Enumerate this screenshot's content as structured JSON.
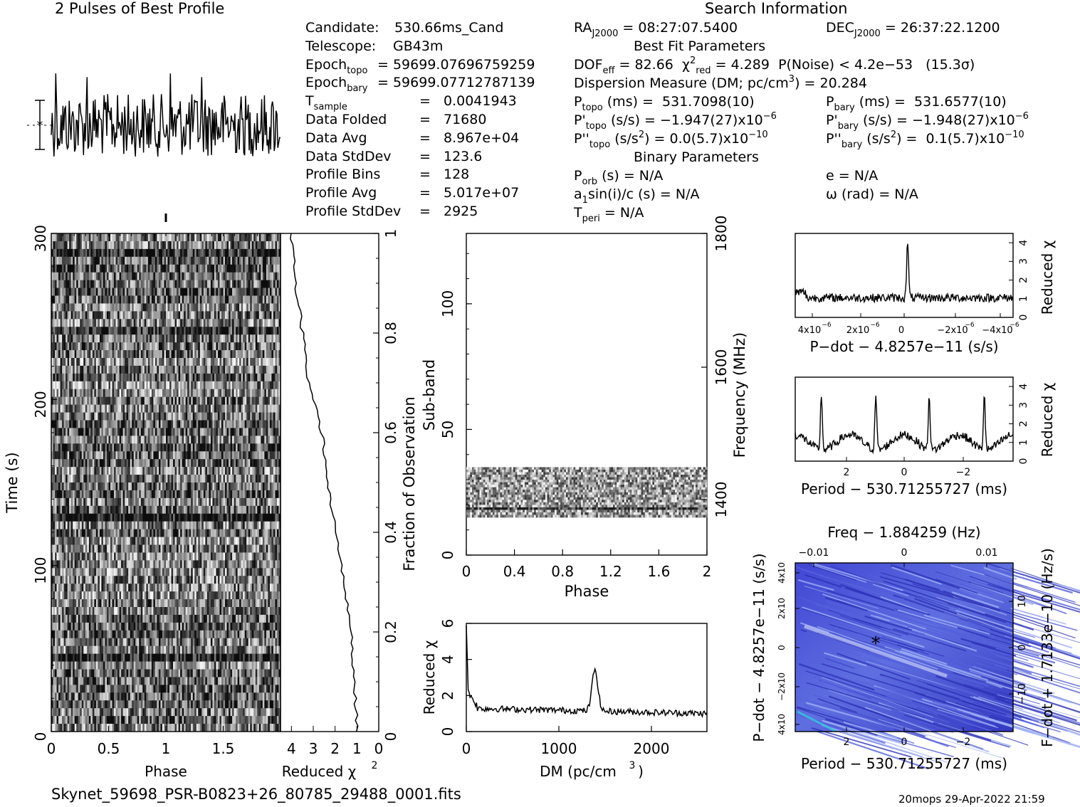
{
  "header": {
    "left_title": "2 Pulses of Best Profile",
    "right_title": "Search Information",
    "filename": "Skynet_59698_PSR-B0823+26_80785_29488_0001.fits",
    "footer": "20mops 29-Apr-2022 21:59"
  },
  "info_left": [
    {
      "label": "Candidate:",
      "value": "530.66ms_Cand"
    },
    {
      "label": "Telescope:",
      "value": "GB43m"
    },
    {
      "label": "Epoch",
      "sub": "topo",
      "value": "= 59699.07696759259"
    },
    {
      "label": "Epoch",
      "sub": "bary",
      "value": "= 59699.07712787139"
    },
    {
      "label": "T",
      "sub": "sample",
      "value": "=",
      "value2": "0.0041943"
    },
    {
      "label": "Data Folded",
      "value": "=",
      "value2": "71680"
    },
    {
      "label": "Data Avg",
      "value": "=",
      "value2": "8.967e+04"
    },
    {
      "label": "Data StdDev",
      "value": "=",
      "value2": "123.6"
    },
    {
      "label": "Profile Bins",
      "value": "=",
      "value2": "128"
    },
    {
      "label": "Profile Avg",
      "value": "=",
      "value2": "5.017e+07"
    },
    {
      "label": "Profile StdDev",
      "value": "=",
      "value2": "2925"
    }
  ],
  "info_mid": {
    "ra": "RA",
    "ra_sub": "J2000",
    "ra_val": "= 08:27:07.5400",
    "dec": "DEC",
    "dec_sub": "J2000",
    "dec_val": "= 26:37:22.1200",
    "best_fit": "Best Fit Parameters",
    "dof": "DOF",
    "dof_sub": "eff",
    "dof_val": "= 82.66",
    "chi": "χ",
    "chi_sup": "2",
    "chi_sub": "red",
    "chi_val": "= 4.289",
    "pnoise": "P(Noise) < 4.2e−53   (15.3σ)",
    "dm_line": "Dispersion Measure (DM; pc/cm",
    "dm_sup": "3",
    "dm_val": ") = 20.284",
    "ptopo": "P",
    "ptopo_sub": "topo",
    "ptopo_val": " (ms) =  531.7098(10)",
    "pbary": "P",
    "pbary_sub": "bary",
    "pbary_val": " (ms) =  531.6577(10)",
    "pdtopo": "P'",
    "pdtopo_sub": "topo",
    "pdtopo_val": " (s/s) = −1.947(27)x10",
    "pdtopo_exp": "−6",
    "pdbary": "P'",
    "pdbary_sub": "bary",
    "pdbary_val": " (s/s) = −1.948(27)x10",
    "pdbary_exp": "−6",
    "pddtopo": "P''",
    "pddtopo_sub": "topo",
    "pddtopo_val": " (s/s",
    "pddtopo_sup": "2",
    "pddtopo_val2": ") = 0.0(5.7)x10",
    "pddtopo_exp": "−10",
    "pddbary": "P''",
    "pddbary_sub": "bary",
    "pddbary_val": " (s/s",
    "pddbary_sup": "2",
    "pddbary_val2": ") =  0.1(5.7)x10",
    "pddbary_exp": "−10",
    "binary": "Binary Parameters",
    "porb": "P",
    "porb_sub": "orb",
    "porb_val": " (s) = N/A",
    "ecc": "e = N/A",
    "a1": "a",
    "a1_sub": "1",
    "a1_val": "sin(i)/c (s) = N/A",
    "omega": "ω (rad) = N/A",
    "tperi": "T",
    "tperi_sub": "peri",
    "tperi_val": " = N/A"
  },
  "axes": {
    "time_label": "Time (s)",
    "phase_label": "Phase",
    "redchi_label": "Reduced χ",
    "redchi_sup": "2",
    "fraction_label": "Fraction of Observation",
    "subband_label": "Sub-band",
    "frequency_label": "Frequency (MHz)",
    "dm_label": "DM (pc/cm",
    "dm_sup": "3",
    "dm_close": ")",
    "pdot_label": "P−dot − 4.8257e−11 (s/s)",
    "period_label1": "Period − 530.71255727 (ms)",
    "period_label2": "Period − 530.71255727 (ms)",
    "freq_label": "Freq − 1.884259 (Hz)",
    "pdot_vert": "P−dot − 4.8257e−11 (s/s)",
    "fdot_vert": "F−dot + 1.7133e−10 (Hz/s)",
    "time_ticks": [
      "0",
      "100",
      "200",
      "300"
    ],
    "phase_ticks": [
      "0",
      "0.5",
      "1",
      "1.5"
    ],
    "redchi_ticks": [
      "4",
      "3",
      "2",
      "1",
      "0"
    ],
    "frac_ticks": [
      "0.2",
      "0.4",
      "0.6",
      "0.8",
      "1"
    ],
    "sub_ticks": [
      "0",
      "50",
      "100"
    ],
    "freq_ticks": [
      "1400",
      "1600",
      "1800"
    ],
    "phase2_ticks": [
      "0",
      "0.4",
      "0.8",
      "1.2",
      "1.6",
      "2"
    ],
    "dmchi_ticks": [
      "0",
      "2",
      "4",
      "6"
    ],
    "dm_ticks": [
      "0",
      "1000",
      "2000"
    ],
    "pd_x_ticks": [
      "4x10",
      "2x10",
      "0",
      "−2x10",
      "−4x10"
    ],
    "pd_x_exp": "−6",
    "rc_ticks": [
      "0",
      "1",
      "2",
      "3",
      "4"
    ],
    "per_ticks": [
      "2",
      "0",
      "−2"
    ],
    "freq_top_ticks": [
      "−0.01",
      "0",
      "0.01"
    ],
    "pdot_left_ticks": [
      "4x10",
      "−2x10",
      "0",
      "2x10",
      "4x10"
    ],
    "fdot_right_ticks": [
      "−10",
      "0",
      "10"
    ],
    "fdot_exp": "−4"
  },
  "chart_data": [
    {
      "type": "line",
      "name": "pulse profile",
      "title": "2 Pulses of Best Profile",
      "x": [
        0,
        2
      ],
      "note_values": "noise-like profile over 2 pulses"
    },
    {
      "type": "heatmap",
      "name": "time-phase",
      "xlabel": "Phase",
      "ylabel": "Time (s)",
      "xlim": [
        0,
        2
      ],
      "ylim": [
        0,
        300
      ]
    },
    {
      "type": "line",
      "name": "reduced chi2 vs time",
      "xlabel": "Reduced χ2",
      "x": [
        1.0,
        1.1,
        1.3,
        1.6,
        2.0,
        2.3,
        2.6,
        2.9,
        3.2,
        3.5,
        3.8,
        4.0
      ],
      "y": [
        0,
        0.1,
        0.2,
        0.3,
        0.4,
        0.5,
        0.6,
        0.65,
        0.7,
        0.8,
        0.9,
        1.0
      ]
    },
    {
      "type": "heatmap",
      "name": "subband-phase",
      "xlabel": "Phase",
      "ylabel": "Sub-band",
      "xlim": [
        0,
        2
      ],
      "ylim": [
        0,
        128
      ],
      "band_range": [
        15,
        35
      ]
    },
    {
      "type": "line",
      "name": "DM curve",
      "xlabel": "DM (pc/cm3)",
      "ylabel": "Reduced χ2",
      "x": [
        0,
        20,
        100,
        300,
        600,
        900,
        1200,
        1350,
        1400,
        1450,
        1600,
        2000,
        2400,
        2600
      ],
      "y": [
        5.8,
        2.5,
        1.6,
        1.2,
        1.0,
        1.1,
        1.3,
        2.2,
        3.4,
        2.0,
        1.2,
        1.0,
        0.8,
        0.9
      ],
      "ylim": [
        0,
        6
      ],
      "xlim": [
        0,
        2600
      ]
    },
    {
      "type": "line",
      "name": "P-dot curve",
      "xlabel": "P−dot − 4.8257e−11 (s/s)",
      "ylabel": "Reduced χ2",
      "ylim": [
        0,
        4.5
      ],
      "peak_x": 0,
      "peak_y": 4.2
    },
    {
      "type": "line",
      "name": "Period curve",
      "xlabel": "Period − 530.71255727 (ms)",
      "ylabel": "Reduced χ2",
      "ylim": [
        0,
        4.5
      ],
      "peaks_x": [
        2.8,
        1.0,
        -0.9,
        -2.8
      ]
    },
    {
      "type": "heatmap",
      "name": "P-Pdot plane",
      "xlabel": "Period − 530.71255727 (ms)",
      "ylabel": "P−dot − 4.8257e−11 (s/s)"
    }
  ],
  "colors": {
    "ink": "#000000",
    "ppdot_bg": "#3a3ec8",
    "ppdot_hi": "#8a9af0"
  }
}
